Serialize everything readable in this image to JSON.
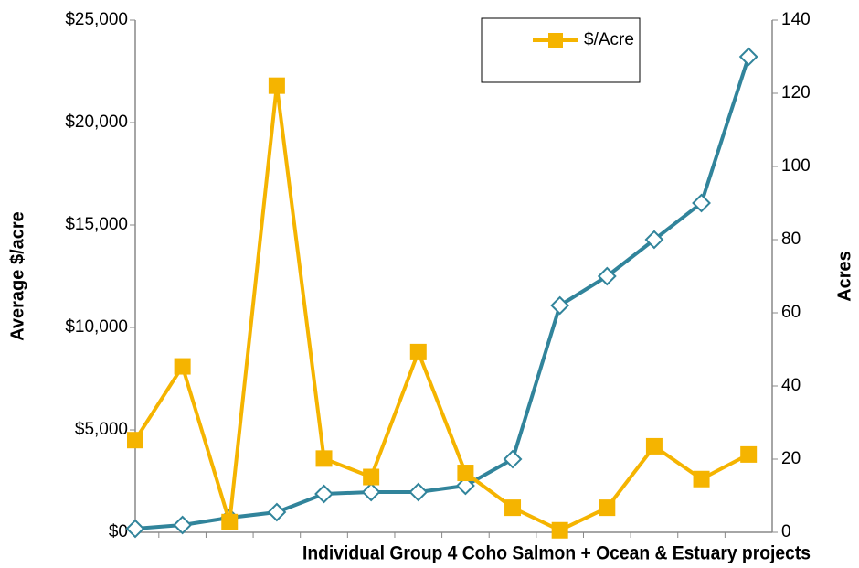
{
  "chart_data": {
    "type": "line",
    "x_label": "Individual Group 4 Coho Salmon + Ocean & Estuary projects",
    "y_label": "Average $/acre",
    "y2_label": "Acres",
    "categories": [
      null,
      null,
      null,
      null,
      null,
      null,
      null,
      null,
      null,
      null,
      null,
      null,
      null,
      null
    ],
    "series": [
      {
        "name": "$/Acre",
        "color": "#f5b400",
        "marker": "square",
        "values": [
          4500,
          8100,
          500,
          21800,
          3600,
          2700,
          8800,
          2900,
          1200,
          100,
          1200,
          4200,
          2600,
          3800
        ]
      },
      {
        "color": "#31849b",
        "marker": "diamond",
        "axis": "y2",
        "values": [
          1,
          2,
          4,
          5.5,
          10.5,
          11,
          11,
          12.75,
          20,
          62,
          70,
          80,
          90,
          130
        ]
      }
    ],
    "ylim": [
      0,
      25000
    ],
    "yticks": [
      {
        "value": 0,
        "label": "$0"
      },
      {
        "value": 5000,
        "label": "$5,000"
      },
      {
        "value": 10000,
        "label": "$10,000"
      },
      {
        "value": 15000,
        "label": "$15,000"
      },
      {
        "value": 20000,
        "label": "$20,000"
      },
      {
        "value": 25000,
        "label": "$25,000"
      }
    ],
    "y2lim": [
      0,
      140
    ],
    "y2ticks": [
      0,
      20,
      40,
      60,
      80,
      100,
      120,
      140
    ],
    "legend": "top-right",
    "grid": false
  }
}
